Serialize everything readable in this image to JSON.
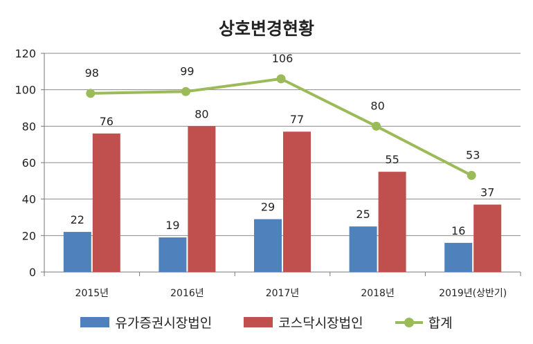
{
  "chart_data": {
    "type": "bar",
    "title": "상호변경현황",
    "categories": [
      "2015년",
      "2016년",
      "2017년",
      "2018년",
      "2019년(상반기)"
    ],
    "ylim": [
      0,
      120
    ],
    "yticks": [
      "0",
      "20",
      "40",
      "60",
      "80",
      "100",
      "120"
    ],
    "grid": true,
    "legend_position": "bottom",
    "series": [
      {
        "name": "유가증권시장법인",
        "kind": "bar",
        "color": "#4f81bd",
        "values": [
          22,
          19,
          29,
          25,
          16
        ]
      },
      {
        "name": "코스닥시장법인",
        "kind": "bar",
        "color": "#c0504d",
        "values": [
          76,
          80,
          77,
          55,
          37
        ]
      },
      {
        "name": "합계",
        "kind": "line",
        "color": "#9bbb59",
        "values": [
          98,
          99,
          106,
          80,
          53
        ]
      }
    ]
  }
}
